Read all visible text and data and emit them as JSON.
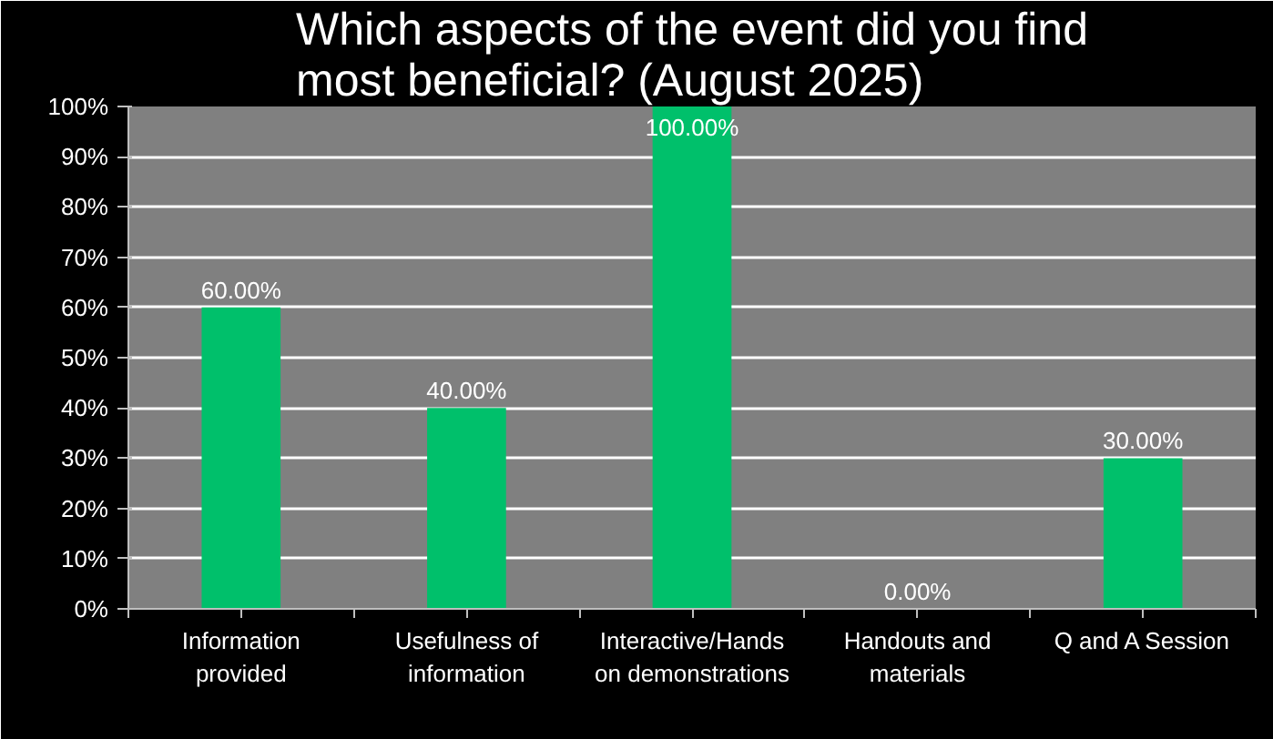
{
  "chart_data": {
    "type": "bar",
    "title": "Which aspects of the event did you find most beneficial? (August 2025)",
    "categories": [
      "Information provided",
      "Usefulness of information",
      "Interactive/Hands on demonstrations",
      "Handouts and materials",
      "Q and A Session"
    ],
    "values": [
      60,
      40,
      100,
      0,
      30
    ],
    "value_labels": [
      "60.00%",
      "40.00%",
      "100.00%",
      "0.00%",
      "30.00%"
    ],
    "color": "#00c06b",
    "ylim": [
      0,
      100
    ],
    "yticks": [
      {
        "value": 0,
        "label": "0%"
      },
      {
        "value": 10,
        "label": "10%"
      },
      {
        "value": 20,
        "label": "20%"
      },
      {
        "value": 30,
        "label": "30%"
      },
      {
        "value": 40,
        "label": "40%"
      },
      {
        "value": 50,
        "label": "50%"
      },
      {
        "value": 60,
        "label": "60%"
      },
      {
        "value": 70,
        "label": "70%"
      },
      {
        "value": 80,
        "label": "80%"
      },
      {
        "value": 90,
        "label": "90%"
      },
      {
        "value": 100,
        "label": "100%"
      }
    ],
    "grid": "y"
  }
}
